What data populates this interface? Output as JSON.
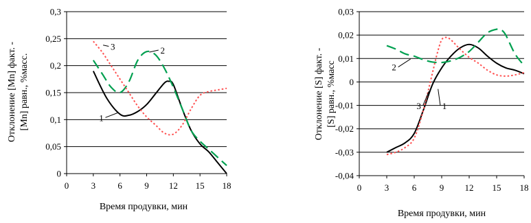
{
  "chart_data": [
    {
      "type": "line",
      "xlabel": "Время продувки, мин",
      "ylabel_line1": "Отклонение [Mn] факт. -",
      "ylabel_line2": "[Mn] равн., %масс.",
      "xlim": [
        0,
        18
      ],
      "ylim": [
        0,
        0.3
      ],
      "x_ticks": [
        0,
        3,
        6,
        9,
        12,
        15,
        18
      ],
      "x_tick_labels": [
        "0",
        "3",
        "6",
        "9",
        "12",
        "15",
        "18"
      ],
      "y_ticks": [
        0,
        0.05,
        0.1,
        0.15,
        0.2,
        0.25,
        0.3
      ],
      "y_tick_labels": [
        "0",
        "0,05",
        "0,1",
        "0,15",
        "0,2",
        "0,25",
        "0,3"
      ],
      "grid": "horizontal",
      "series": [
        {
          "name": "1",
          "color": "#000000",
          "dash": "solid",
          "x": [
            3,
            4.5,
            6,
            7,
            8,
            9,
            10,
            11,
            11.5,
            12,
            13,
            14,
            15,
            16,
            17,
            18
          ],
          "y": [
            0.19,
            0.14,
            0.11,
            0.108,
            0.115,
            0.128,
            0.148,
            0.168,
            0.171,
            0.165,
            0.12,
            0.08,
            0.055,
            0.04,
            0.02,
            0.0
          ]
        },
        {
          "name": "2",
          "color": "#00a050",
          "dash": "long-dash",
          "x": [
            3,
            4,
            5,
            6,
            7,
            8,
            9,
            10,
            11,
            12,
            13,
            14,
            15,
            16,
            17,
            18
          ],
          "y": [
            0.21,
            0.185,
            0.16,
            0.15,
            0.17,
            0.21,
            0.226,
            0.22,
            0.195,
            0.16,
            0.12,
            0.08,
            0.06,
            0.045,
            0.03,
            0.015
          ]
        },
        {
          "name": "3",
          "color": "#ff5050",
          "dash": "dotted",
          "x": [
            3,
            4,
            5,
            6,
            7,
            8,
            9,
            10,
            11,
            12,
            13,
            14,
            15,
            16,
            17,
            18
          ],
          "y": [
            0.245,
            0.225,
            0.2,
            0.175,
            0.15,
            0.125,
            0.105,
            0.09,
            0.075,
            0.073,
            0.09,
            0.12,
            0.145,
            0.152,
            0.155,
            0.158
          ]
        }
      ],
      "annotations": [
        {
          "text": "1",
          "x": 3.9,
          "y": 0.1,
          "tx": 5.8,
          "ty": 0.113
        },
        {
          "text": "2",
          "x": 10.8,
          "y": 0.225,
          "tx": 9.3,
          "ty": 0.225
        },
        {
          "text": "3",
          "x": 5.2,
          "y": 0.232,
          "tx": 4.1,
          "ty": 0.238
        }
      ]
    },
    {
      "type": "line",
      "xlabel": "Время продувки, мин",
      "ylabel_line1": "Отклонение [S] факт. -",
      "ylabel_line2": "[S] равн., %масс",
      "xlim": [
        0,
        18
      ],
      "ylim": [
        -0.04,
        0.03
      ],
      "x_ticks": [
        0,
        3,
        6,
        9,
        12,
        15,
        18
      ],
      "x_tick_labels": [
        "0",
        "3",
        "6",
        "9",
        "12",
        "15",
        "18"
      ],
      "y_ticks": [
        -0.04,
        -0.03,
        -0.02,
        -0.01,
        0,
        0.01,
        0.02,
        0.03
      ],
      "y_tick_labels": [
        "-0,04",
        "-0,03",
        "-0,02",
        "-0,01",
        "0",
        "0,01",
        "0,02",
        "0,03"
      ],
      "grid": "horizontal",
      "series": [
        {
          "name": "1",
          "color": "#000000",
          "dash": "solid",
          "x": [
            3,
            4,
            5,
            6,
            7,
            8,
            9,
            10,
            11,
            12,
            13,
            14,
            15,
            16,
            17,
            18
          ],
          "y": [
            -0.03,
            -0.028,
            -0.026,
            -0.022,
            -0.012,
            -0.001,
            0.006,
            0.011,
            0.0145,
            0.016,
            0.0145,
            0.011,
            0.008,
            0.006,
            0.005,
            0.0035
          ]
        },
        {
          "name": "2",
          "color": "#00a050",
          "dash": "long-dash",
          "x": [
            3,
            4,
            5,
            6,
            7,
            8,
            9,
            10,
            11,
            12,
            13,
            14,
            15,
            15.5,
            16,
            17,
            18
          ],
          "y": [
            0.0155,
            0.014,
            0.012,
            0.011,
            0.0095,
            0.0085,
            0.0083,
            0.009,
            0.0105,
            0.013,
            0.017,
            0.021,
            0.0225,
            0.0222,
            0.02,
            0.012,
            0.007
          ]
        },
        {
          "name": "3",
          "color": "#ff5050",
          "dash": "dotted",
          "x": [
            3,
            4,
            5,
            6,
            7,
            8,
            8.5,
            9,
            9.5,
            10,
            11,
            12,
            13,
            14,
            15,
            16,
            17,
            18
          ],
          "y": [
            -0.031,
            -0.03,
            -0.028,
            -0.024,
            -0.012,
            0.004,
            0.012,
            0.018,
            0.019,
            0.018,
            0.014,
            0.0105,
            0.008,
            0.005,
            0.003,
            0.0025,
            0.003,
            0.004
          ]
        }
      ],
      "annotations": [
        {
          "text": "1",
          "x": 9.3,
          "y": -0.011,
          "tx": 8.6,
          "ty": -0.003
        },
        {
          "text": "2",
          "x": 3.8,
          "y": 0.0055,
          "tx": 5.6,
          "ty": 0.0098
        },
        {
          "text": "3",
          "x": 6.5,
          "y": -0.011,
          "tx": 7.6,
          "ty": -0.004
        }
      ]
    }
  ]
}
